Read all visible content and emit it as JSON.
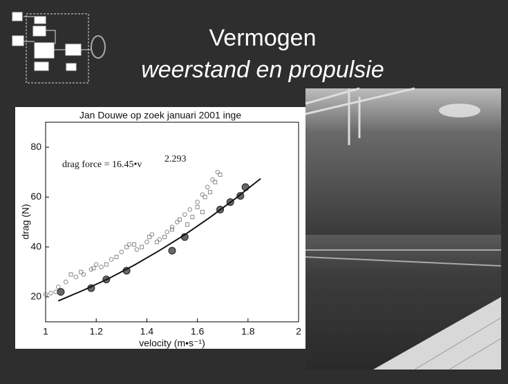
{
  "slide": {
    "title": "Vermogen",
    "subtitle": "weerstand en propulsie"
  },
  "chart_data": {
    "type": "scatter",
    "title": "Jan Douwe op zoek januari 2001 inge",
    "annotation": "drag force = 16.45•v",
    "annotation_exponent": "2.293",
    "x_label": "velocity  (m•s⁻¹)",
    "y_label": "drag  (N)",
    "xlim": [
      1,
      2
    ],
    "xticks": [
      1,
      1.2,
      1.4,
      1.6,
      1.8,
      2
    ],
    "ylim": [
      10,
      90
    ],
    "yticks": [
      20,
      40,
      60,
      80
    ],
    "series": [
      {
        "marker": "circle",
        "color": "#888888",
        "x": [
          1.0,
          1.02,
          1.04,
          1.05,
          1.08,
          1.12,
          1.15,
          1.18,
          1.2,
          1.22,
          1.26,
          1.3,
          1.33,
          1.36,
          1.4,
          1.42,
          1.45,
          1.48,
          1.5,
          1.52,
          1.55,
          1.57,
          1.6,
          1.62,
          1.64,
          1.66,
          1.68
        ],
        "values": [
          21,
          21.5,
          22,
          24,
          26,
          28,
          29,
          31,
          33,
          32,
          35,
          38,
          41,
          39,
          42,
          45,
          43,
          46,
          48,
          50,
          53,
          55,
          58,
          61,
          64,
          67,
          70
        ]
      },
      {
        "marker": "square",
        "color": "#888888",
        "x": [
          1.1,
          1.14,
          1.19,
          1.24,
          1.28,
          1.32,
          1.35,
          1.38,
          1.41,
          1.44,
          1.47,
          1.5,
          1.53,
          1.56,
          1.58,
          1.6,
          1.62,
          1.63,
          1.65,
          1.67,
          1.69
        ],
        "values": [
          29,
          30,
          31.5,
          33,
          36,
          40,
          41,
          40,
          44,
          42,
          44,
          47,
          51,
          49,
          52,
          56,
          54,
          60,
          62,
          66,
          69
        ]
      },
      {
        "marker": "filled-circle",
        "color": "#666666",
        "x": [
          1.06,
          1.18,
          1.24,
          1.32,
          1.5,
          1.55,
          1.69,
          1.73,
          1.77,
          1.79
        ],
        "values": [
          22,
          23.5,
          27,
          30.5,
          38.5,
          44,
          55,
          58,
          60.5,
          64
        ]
      },
      {
        "marker": "line",
        "color": "#111111",
        "x": [
          1.05,
          1.15,
          1.25,
          1.35,
          1.45,
          1.55,
          1.65,
          1.75,
          1.85
        ],
        "values": [
          18.4,
          22.7,
          27.4,
          32.7,
          38.6,
          44.9,
          51.9,
          59.4,
          67.4
        ]
      }
    ]
  }
}
